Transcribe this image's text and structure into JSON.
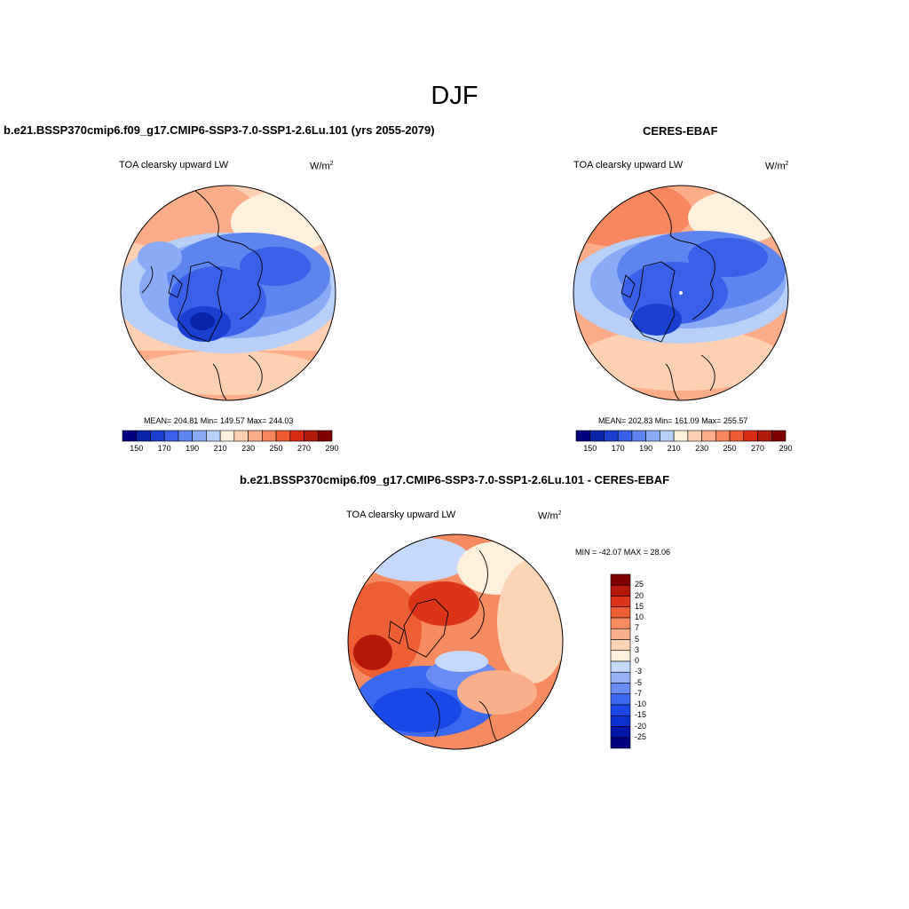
{
  "season": "DJF",
  "colors": {
    "abs_scale": [
      "#00007f",
      "#0a24a8",
      "#1a3fd0",
      "#3a5fe8",
      "#5e84f0",
      "#8aaaf5",
      "#b8cff8",
      "#fdf0dc",
      "#fdd0b4",
      "#fcac88",
      "#f8865f",
      "#ee5a32",
      "#d82b14",
      "#b01a0a",
      "#7f0000"
    ],
    "diff_scale": [
      "#00007f",
      "#0016a8",
      "#0a30d0",
      "#1a48e8",
      "#3a68f0",
      "#6a8cf5",
      "#98b2f8",
      "#c6d8fb",
      "#fdf0dc",
      "#fcd4b6",
      "#fab08c",
      "#f68a60",
      "#ee5e34",
      "#dc3418",
      "#b51808",
      "#7f0000"
    ]
  },
  "panels": {
    "model": {
      "title": "b.e21.BSSP370cmip6.f09_g17.CMIP6-SSP3-7.0-SSP1-2.6Lu.101 (yrs 2055-2079)",
      "variable": "TOA clearsky upward LW",
      "units": "W/m",
      "units_exp": "2",
      "stats": "MEAN= 204.81  Min= 149.57  Max= 244.03",
      "colorbar_ticks": [
        "150",
        "170",
        "190",
        "210",
        "230",
        "250",
        "270",
        "290"
      ]
    },
    "obs": {
      "title": "CERES-EBAF",
      "variable": "TOA clearsky upward LW",
      "units": "W/m",
      "units_exp": "2",
      "stats": "MEAN= 202.83  Min= 161.09  Max= 255.57",
      "colorbar_ticks": [
        "150",
        "170",
        "190",
        "210",
        "230",
        "250",
        "270",
        "290"
      ]
    },
    "diff": {
      "title": "b.e21.BSSP370cmip6.f09_g17.CMIP6-SSP3-7.0-SSP1-2.6Lu.101 - CERES-EBAF",
      "variable": "TOA clearsky upward LW",
      "units": "W/m",
      "units_exp": "2",
      "stats": "MIN = -42.07 MAX =  28.06",
      "colorbar_ticks": [
        "25",
        "20",
        "15",
        "10",
        "7",
        "5",
        "3",
        "0",
        "-3",
        "-5",
        "-7",
        "-10",
        "-15",
        "-20",
        "-25"
      ]
    }
  }
}
